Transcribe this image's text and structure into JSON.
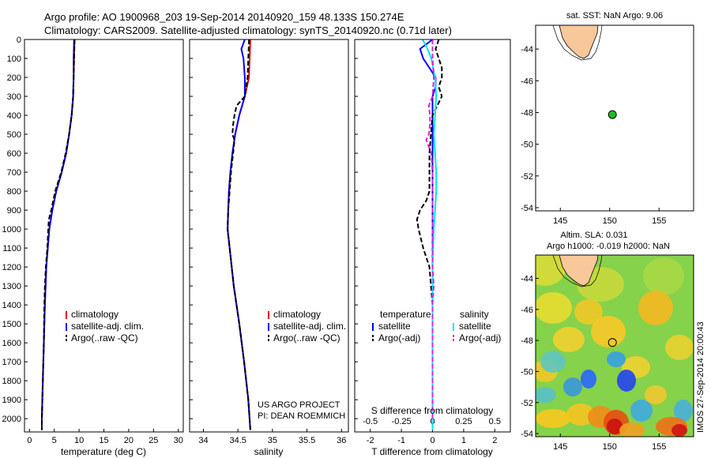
{
  "header": {
    "line1": "Argo profile: AO 1900968_203 19-Sep-2014 20140920_159 48.133S 150.274E",
    "line2": "Climatology: CARS2009. Satellite-adjusted climatology: synTS_20140920.nc (0.71d later)"
  },
  "colors": {
    "climatology": "#e00000",
    "satellite": "#0000ff",
    "argo": "#000000",
    "sat_s": "#00e5ee",
    "argo_s": "#dd22dd",
    "land": "#f8c89a",
    "float": "#22bb22"
  },
  "chart_data": [
    {
      "type": "line",
      "id": "temperature",
      "xlabel": "temperature (deg C)",
      "xlim": [
        -1,
        31
      ],
      "ylim": [
        2070,
        0
      ],
      "xticks": [
        0,
        5,
        10,
        15,
        20,
        25,
        30
      ],
      "yticks": [
        0,
        100,
        200,
        300,
        400,
        500,
        600,
        700,
        800,
        900,
        1000,
        1100,
        1200,
        1300,
        1400,
        1500,
        1600,
        1700,
        1800,
        1900,
        2000
      ],
      "legend": [
        "climatology",
        "satellite-adj. clim.",
        "Argo(..raw -QC)"
      ],
      "series": [
        {
          "name": "climatology",
          "y": [
            0,
            100,
            200,
            300,
            400,
            500,
            600,
            700,
            800,
            900,
            1000,
            1200,
            1400,
            1600,
            1800,
            2000,
            2060
          ],
          "values": [
            9.1,
            9.0,
            8.9,
            8.8,
            8.5,
            8.0,
            7.4,
            6.5,
            5.4,
            4.6,
            4.0,
            3.4,
            3.1,
            2.9,
            2.7,
            2.5,
            2.5
          ]
        },
        {
          "name": "satellite-adj. clim.",
          "y": [
            0,
            100,
            200,
            300,
            400,
            500,
            600,
            700,
            800,
            900,
            1000,
            1200,
            1400,
            1600,
            1800,
            2000,
            2060
          ],
          "values": [
            9.0,
            8.9,
            8.9,
            8.8,
            8.5,
            8.0,
            7.4,
            6.5,
            5.4,
            4.6,
            4.0,
            3.4,
            3.1,
            2.9,
            2.7,
            2.5,
            2.5
          ]
        },
        {
          "name": "Argo(..raw -QC)",
          "y": [
            0,
            100,
            200,
            300,
            400,
            500,
            600,
            700,
            800,
            900,
            950,
            1000,
            1100,
            1200,
            1300,
            1400,
            1600,
            1800,
            2000,
            2060
          ],
          "values": [
            9.1,
            9.0,
            8.9,
            8.8,
            8.5,
            8.0,
            7.3,
            6.4,
            5.2,
            4.4,
            3.9,
            3.8,
            3.6,
            3.3,
            3.1,
            3.0,
            2.9,
            2.7,
            2.5,
            2.5
          ]
        }
      ]
    },
    {
      "type": "line",
      "id": "salinity",
      "xlabel": "salinity",
      "xlim": [
        33.8,
        36.1
      ],
      "ylim": [
        2070,
        0
      ],
      "xticks": [
        34,
        34.5,
        35,
        35.5,
        36
      ],
      "legend": [
        "climatology",
        "satellite-adj. clim.",
        "Argo(..raw -QC)"
      ],
      "annotation": [
        "US ARGO PROJECT",
        "PI: DEAN ROEMMICH"
      ],
      "series": [
        {
          "name": "climatology",
          "y": [
            0,
            100,
            200,
            300,
            400,
            500,
            600,
            700,
            800,
            900,
            1000,
            1100,
            1300,
            1500,
            1700,
            1900,
            2060
          ],
          "values": [
            34.68,
            34.67,
            34.66,
            34.6,
            34.52,
            34.46,
            34.42,
            34.39,
            34.37,
            34.36,
            34.35,
            34.38,
            34.44,
            34.52,
            34.59,
            34.65,
            34.68
          ]
        },
        {
          "name": "satellite-adj. clim.",
          "y": [
            0,
            50,
            100,
            200,
            300,
            400,
            500,
            600,
            700,
            800,
            900,
            1000,
            1100,
            1300,
            1500,
            1700,
            1900,
            2060
          ],
          "values": [
            34.6,
            34.55,
            34.58,
            34.6,
            34.6,
            34.52,
            34.46,
            34.42,
            34.39,
            34.37,
            34.36,
            34.35,
            34.38,
            34.44,
            34.52,
            34.59,
            34.65,
            34.68
          ]
        },
        {
          "name": "Argo(..raw -QC)",
          "y": [
            0,
            100,
            200,
            300,
            350,
            400,
            450,
            500,
            530,
            600,
            700,
            800,
            900,
            1000,
            1100,
            1300,
            1500,
            1700,
            1900,
            2060
          ],
          "values": [
            34.66,
            34.65,
            34.64,
            34.6,
            34.48,
            34.45,
            34.43,
            34.42,
            34.45,
            34.43,
            34.4,
            34.38,
            34.36,
            34.35,
            34.38,
            34.44,
            34.52,
            34.59,
            34.65,
            34.68
          ]
        }
      ]
    },
    {
      "type": "line",
      "id": "differences",
      "xlabel": "T difference from climatology",
      "xlabel_top": "S difference from climatology",
      "xlim": [
        -2.5,
        2.5
      ],
      "ylim": [
        2070,
        0
      ],
      "xticks": [
        -2,
        -1,
        0,
        1,
        2
      ],
      "xticks_top": [
        "-0.5",
        "-0.25",
        "0",
        "0.25",
        "0.5"
      ],
      "legend_t": {
        "title": "temperature",
        "items": [
          "satellite",
          "Argo(-adj)"
        ]
      },
      "legend_s": {
        "title": "salinity",
        "items": [
          "satellite",
          "Argo(-adj)"
        ]
      },
      "series": [
        {
          "name": "T satellite",
          "y": [
            0,
            50,
            100,
            150,
            200,
            250,
            300,
            400,
            500,
            600,
            800,
            1000,
            1200,
            1600,
            2000,
            2060
          ],
          "values": [
            0.0,
            -0.4,
            -0.3,
            -0.1,
            0.1,
            0.1,
            0.0,
            0.0,
            0.0,
            0.0,
            0.0,
            0.0,
            0.0,
            0.0,
            0.0,
            0.0
          ]
        },
        {
          "name": "T Argo(-adj)",
          "y": [
            0,
            50,
            100,
            150,
            200,
            250,
            300,
            400,
            500,
            600,
            700,
            800,
            850,
            900,
            950,
            1000,
            1100,
            1200,
            1300,
            1400,
            1600,
            1800,
            2000,
            2060
          ],
          "values": [
            0.2,
            0.1,
            0.2,
            0.3,
            0.3,
            0.2,
            0.3,
            0.0,
            -0.05,
            -0.1,
            -0.1,
            -0.1,
            -0.2,
            -0.4,
            -0.5,
            -0.45,
            -0.3,
            -0.1,
            -0.05,
            0.0,
            0.0,
            0.0,
            0.0,
            0.0
          ]
        },
        {
          "name": "S satellite",
          "y": [
            0,
            50,
            100,
            200,
            300,
            400,
            500,
            600,
            700,
            800,
            900,
            1000,
            1200,
            1500,
            1800,
            2060
          ],
          "values": [
            -0.08,
            -0.04,
            -0.01,
            0.02,
            0.03,
            0.02,
            0.01,
            0.02,
            0.03,
            0.03,
            0.02,
            0.01,
            0.0,
            0.0,
            0.0,
            0.0
          ]
        },
        {
          "name": "S Argo(-adj)",
          "y": [
            0,
            100,
            200,
            300,
            350,
            400,
            450,
            500,
            530,
            600,
            700,
            800,
            900,
            1000,
            1100,
            1200,
            1300,
            1400,
            1600,
            1800,
            2000
          ],
          "values": [
            0.0,
            0.0,
            0.01,
            0.0,
            -0.03,
            -0.02,
            -0.02,
            -0.03,
            -0.05,
            -0.01,
            0.0,
            0.0,
            0.0,
            0.0,
            0.0,
            0.0,
            0.01,
            0.0,
            0.0,
            0.0,
            0.0
          ]
        }
      ]
    },
    {
      "type": "scatter",
      "id": "map_sst",
      "title": "sat. SST: NaN Argo: 9.06",
      "xlim": [
        142.5,
        158.5
      ],
      "ylim": [
        -54.2,
        -42.5
      ],
      "xticks": [
        145,
        150,
        155
      ],
      "yticks": [
        -44,
        -46,
        -48,
        -50,
        -52,
        -54
      ],
      "point": {
        "lon": 150.274,
        "lat": -48.133
      }
    },
    {
      "type": "heatmap",
      "id": "map_sla",
      "title_line1": "Altim. SLA: 0.031",
      "title_line2": "Argo h1000: -0.019 h2000: NaN",
      "xlim": [
        142.5,
        158.5
      ],
      "ylim": [
        -54.2,
        -42.5
      ],
      "xticks": [
        145,
        150,
        155
      ],
      "yticks": [
        -44,
        -46,
        -48,
        -50,
        -52,
        -54
      ],
      "point": {
        "lon": 150.274,
        "lat": -48.133
      },
      "side_label": "IMOS 27-Sep-2014 20:00:43"
    }
  ]
}
